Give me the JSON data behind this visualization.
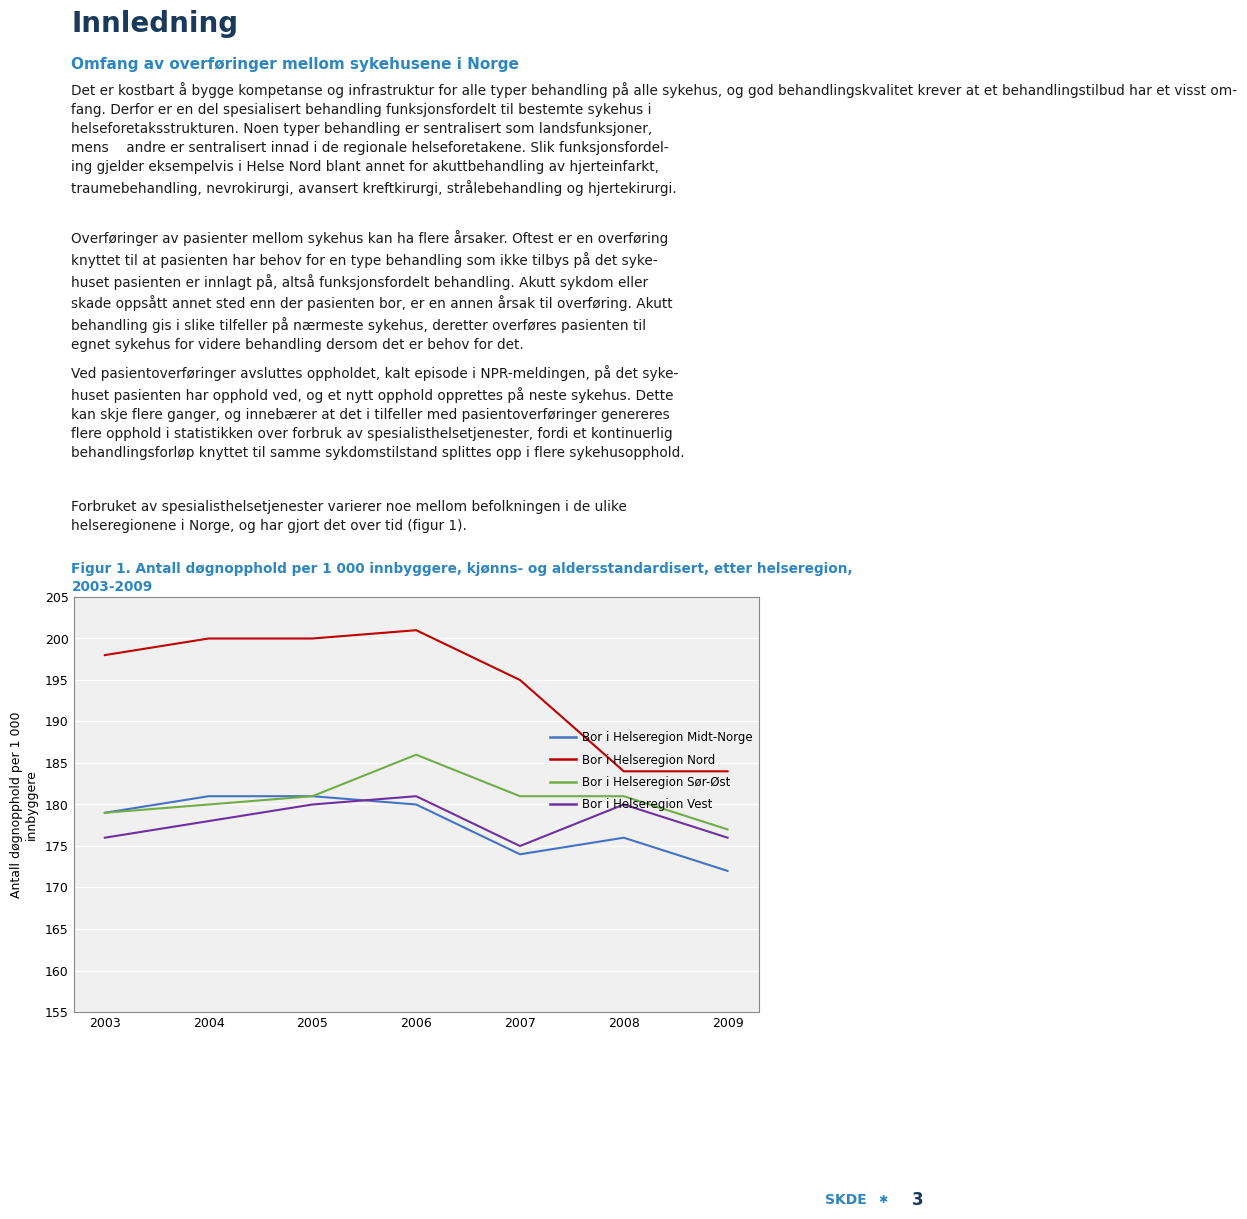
{
  "title": "Innledning",
  "subtitle": "Omfang av overføringer mellom sykehusene i Norge",
  "subtitle_color": "#2e86c1",
  "body_text_1": "Det er kostbart å bygge kompetanse og infrastruktur for alle typer behandling på alle sykehus, og god behandlingskvalitet krever at et behandlingstilbud har et visst om-\nfang. Derfor er en del spesialisert behandling funksjonsfordelt til bestemte sykehus i\nhelseforetaksstrukturen. Noen typer behandling er sentralisert som landsfunksjoner,\nmens    andre er sentralisert innad i de regionale helseforetakene. Slik funksjonsfordel-\ning gjelder eksempelvis i Helse Nord blant annet for akuttbehandling av hjerteinfarkt,\ntraumebehandling, nevrokirurgi, avansert kreftkirurgi, strålebehandling og hjertekirurgi.",
  "body_text_2": "Overføringer av pasienter mellom sykehus kan ha flere årsaker. Oftest er en overføring\nknyttet til at pasienten har behov for en type behandling som ikke tilbys på det syke-\nhuset pasienten er innlagt på, altså funksjonsfordelt behandling. Akutt sykdom eller\nskade oppsått annet sted enn der pasienten bor, er en annen årsak til overføring. Akutt\nbehandling gis i slike tilfeller på nærmeste sykehus, deretter overføres pasienten til\negnet sykehus for videre behandling dersom det er behov for det.",
  "body_text_3": "Ved pasientoverføringer avsluttes oppholdet, kalt episode i NPR-meldingen, på det syke-\nhuset pasienten har opphold ved, og et nytt opphold opprettes på neste sykehus. Dette\nkan skje flere ganger, og innebærer at det i tilfeller med pasientoverføringer genereres\nflere opphold i statistikken over forbruk av spesialisthelsetjenester, fordi et kontinuerlig\nbehandlingsforløp knyttet til samme sykdomstilstand splittes opp i flere sykehusopphold.",
  "body_text_4": "Forbruket av spesialisthelsetjenester varierer noe mellom befolkningen i de ulike\nhelseregionene i Norge, og har gjort det over tid (figur 1).",
  "fig_caption_line1": "Figur 1. Antall døgnopphold per 1 000 innbyggere, kjønns- og aldersstandardisert, etter helseregion,",
  "fig_caption_line2": "2003-2009",
  "fig_caption_color": "#2e86c1",
  "years": [
    2003,
    2004,
    2005,
    2006,
    2007,
    2008,
    2009
  ],
  "midt_norge": [
    179,
    181,
    181,
    180,
    174,
    176,
    172
  ],
  "nord": [
    198,
    200,
    200,
    201,
    195,
    184,
    184
  ],
  "sor_ost": [
    179,
    180,
    181,
    186,
    181,
    181,
    177
  ],
  "vest": [
    176,
    178,
    180,
    181,
    175,
    180,
    176
  ],
  "ylim": [
    155,
    205
  ],
  "yticks": [
    155,
    160,
    165,
    170,
    175,
    180,
    185,
    190,
    195,
    200,
    205
  ],
  "ylabel": "Antall døgnopphold per 1 000\ninnbyggere",
  "line_colors": {
    "midt_norge": "#4472c4",
    "nord": "#c00000",
    "sor_ost": "#70ad47",
    "vest": "#7030a0"
  },
  "legend_labels": [
    "Bor i Helseregion Midt-Norge",
    "Bor i Helseregion Nord",
    "Bor i Helseregion Sør-Øst",
    "Bor i Helseregion Vest"
  ],
  "background_color": "#ffffff",
  "chart_bg_color": "#f0f0f0",
  "page_number": "3"
}
